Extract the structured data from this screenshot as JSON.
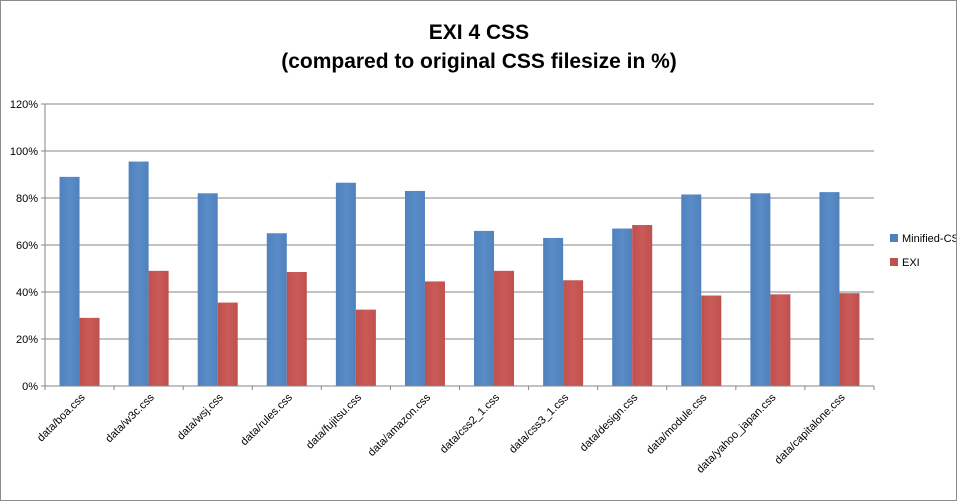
{
  "chart_data": {
    "type": "bar",
    "title": "EXI 4 CSS",
    "subtitle": "(compared to original CSS filesize in %)",
    "xlabel": "",
    "ylabel": "",
    "categories": [
      "data/boa.css",
      "data/w3c.css",
      "data/wsj.css",
      "data/rules.css",
      "data/fujitsu.css",
      "data/amazon.css",
      "data/css2_1.css",
      "data/css3_1.css",
      "data/design.css",
      "data/module.css",
      "data/yahoo_japan.css",
      "data/capitalone.css"
    ],
    "series": [
      {
        "name": "Minified-CSS",
        "color": "#4F81BD",
        "values": [
          89,
          95.5,
          82,
          65,
          86.5,
          83,
          66,
          63,
          67,
          81.5,
          82,
          82.5
        ]
      },
      {
        "name": "EXI",
        "color": "#C0504D",
        "values": [
          29,
          49,
          35.5,
          48.5,
          32.5,
          44.5,
          49,
          45,
          68.5,
          38.5,
          39,
          39.5
        ]
      }
    ],
    "ylim": [
      0,
      120
    ],
    "yticks": [
      0,
      20,
      40,
      60,
      80,
      100,
      120
    ],
    "ytick_suffix": "%",
    "grid": true,
    "legend_position": "right"
  }
}
